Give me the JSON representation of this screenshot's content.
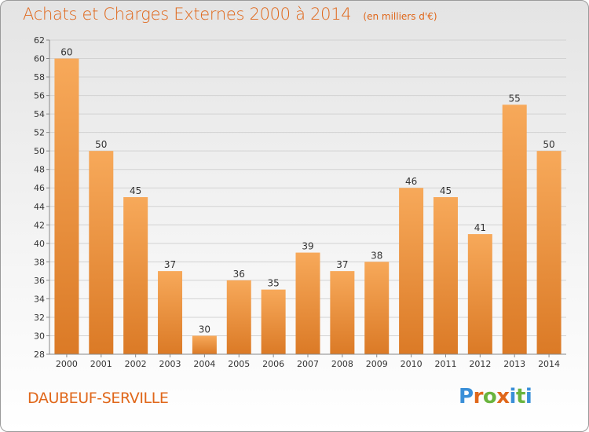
{
  "header": {
    "title": "Achats et Charges Externes 2000 à 2014",
    "unit": "(en milliers d'€)"
  },
  "footer": {
    "commune": "DAUBEUF-SERVILLE",
    "logo": {
      "letters": [
        "P",
        "r",
        "o",
        "x",
        "i",
        "t",
        "i"
      ],
      "colors": [
        "#3a8fd8",
        "#e0671a",
        "#6ab43e",
        "#e0671a",
        "#3a8fd8",
        "#6ab43e",
        "#3a8fd8"
      ]
    }
  },
  "colors": {
    "bar_light": "#f7a95a",
    "bar_dark": "#db7a26",
    "accent": "#e0671a"
  },
  "chart_data": {
    "type": "bar",
    "categories": [
      "2000",
      "2001",
      "2002",
      "2003",
      "2004",
      "2005",
      "2006",
      "2007",
      "2008",
      "2009",
      "2010",
      "2011",
      "2012",
      "2013",
      "2014"
    ],
    "values": [
      60,
      50,
      45,
      37,
      30,
      36,
      35,
      39,
      37,
      38,
      46,
      45,
      41,
      55,
      50
    ],
    "title": "Achats et Charges Externes 2000 à 2014",
    "ylim": [
      28,
      62
    ],
    "yticks": [
      28,
      30,
      32,
      34,
      36,
      38,
      40,
      42,
      44,
      46,
      48,
      50,
      52,
      54,
      56,
      58,
      60,
      62
    ],
    "grid": true
  }
}
